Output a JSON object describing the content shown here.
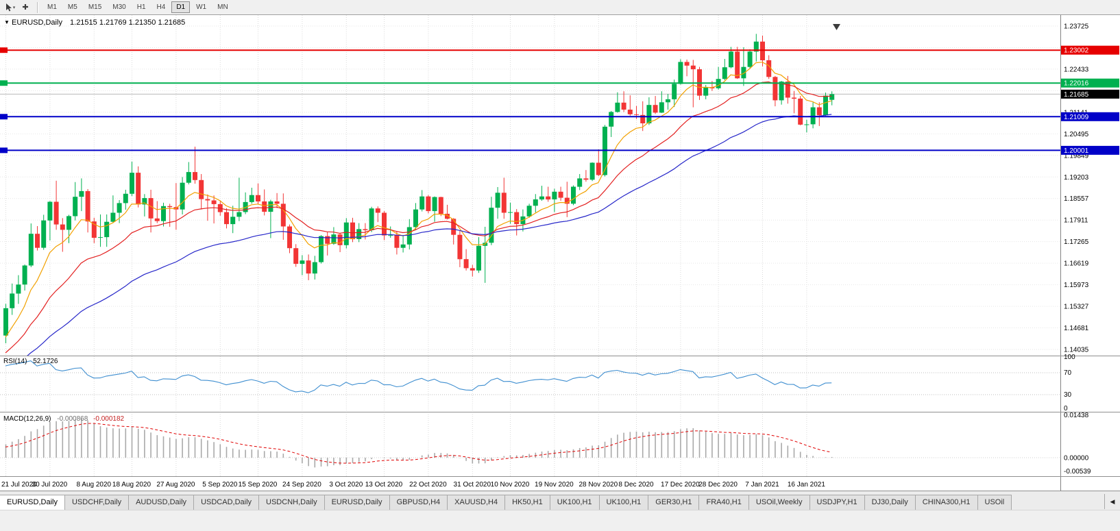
{
  "header": {
    "marker": "▼",
    "symbol_period": "EURUSD,Daily",
    "ohlc_text": "1.21515 1.21769 1.21350 1.21685"
  },
  "toolbar": {
    "timeframes": [
      {
        "label": "M1",
        "active": false
      },
      {
        "label": "M5",
        "active": false
      },
      {
        "label": "M15",
        "active": false
      },
      {
        "label": "M30",
        "active": false
      },
      {
        "label": "H1",
        "active": false
      },
      {
        "label": "H4",
        "active": false
      },
      {
        "label": "D1",
        "active": true
      },
      {
        "label": "W1",
        "active": false
      },
      {
        "label": "MN",
        "active": false
      }
    ]
  },
  "chart_data": {
    "type": "candlestick",
    "symbol": "EURUSD",
    "timeframe": "Daily",
    "current": {
      "open": 1.21515,
      "high": 1.21769,
      "low": 1.2135,
      "close": 1.21685
    },
    "colors": {
      "up": "#00b050",
      "down": "#f23535"
    },
    "price_axis": {
      "ticks": [
        "1.23725",
        "1.23079",
        "1.22433",
        "1.21787",
        "1.21141",
        "1.20495",
        "1.19849",
        "1.19203",
        "1.18557",
        "1.17911",
        "1.17265",
        "1.16619",
        "1.15973",
        "1.15327",
        "1.14681",
        "1.14035"
      ]
    },
    "hlines": [
      {
        "price": 1.23002,
        "label": "1.23002",
        "color": "#e60000"
      },
      {
        "price": 1.22016,
        "label": "1.22016",
        "color": "#00b050"
      },
      {
        "price": 1.21009,
        "label": "1.21009",
        "color": "#0000c8"
      },
      {
        "price": 1.20001,
        "label": "1.20001",
        "color": "#0000c8"
      }
    ],
    "current_price": {
      "value": 1.21685,
      "label": "1.21685",
      "color": "#000000"
    },
    "moving_averages": [
      {
        "period": 8,
        "color": "#f2a100"
      },
      {
        "period": 20,
        "color": "#e32020"
      },
      {
        "period": 45,
        "color": "#2626c9"
      }
    ],
    "x_labels": [
      {
        "i": 0,
        "label": "21 Jul 2020"
      },
      {
        "i": 7,
        "label": "30 Jul 2020"
      },
      {
        "i": 14,
        "label": "8 Aug 2020"
      },
      {
        "i": 20,
        "label": "18 Aug 2020"
      },
      {
        "i": 27,
        "label": "27 Aug 2020"
      },
      {
        "i": 34,
        "label": "5 Sep 2020"
      },
      {
        "i": 40,
        "label": "15 Sep 2020"
      },
      {
        "i": 47,
        "label": "24 Sep 2020"
      },
      {
        "i": 54,
        "label": "3 Oct 2020"
      },
      {
        "i": 60,
        "label": "13 Oct 2020"
      },
      {
        "i": 67,
        "label": "22 Oct 2020"
      },
      {
        "i": 74,
        "label": "31 Oct 2020"
      },
      {
        "i": 80,
        "label": "10 Nov 2020"
      },
      {
        "i": 87,
        "label": "19 Nov 2020"
      },
      {
        "i": 94,
        "label": "28 Nov 2020"
      },
      {
        "i": 100,
        "label": "8 Dec 2020"
      },
      {
        "i": 107,
        "label": "17 Dec 2020"
      },
      {
        "i": 113,
        "label": "28 Dec 2020"
      },
      {
        "i": 120,
        "label": "7 Jan 2021"
      },
      {
        "i": 127,
        "label": "16 Jan 2021"
      }
    ],
    "candles": [
      [
        1.1445,
        1.154,
        1.1422,
        1.1527
      ],
      [
        1.1527,
        1.1601,
        1.1507,
        1.1571
      ],
      [
        1.1571,
        1.1626,
        1.154,
        1.1598
      ],
      [
        1.1598,
        1.1658,
        1.158,
        1.1655
      ],
      [
        1.1655,
        1.1781,
        1.165,
        1.175
      ],
      [
        1.175,
        1.1773,
        1.17,
        1.1708
      ],
      [
        1.1708,
        1.1807,
        1.1702,
        1.179
      ],
      [
        1.179,
        1.1848,
        1.173,
        1.1846
      ],
      [
        1.1846,
        1.1909,
        1.1762,
        1.1778
      ],
      [
        1.1778,
        1.1797,
        1.1696,
        1.1762
      ],
      [
        1.1762,
        1.1807,
        1.1722,
        1.1803
      ],
      [
        1.1803,
        1.1905,
        1.179,
        1.1861
      ],
      [
        1.1861,
        1.1916,
        1.1818,
        1.1878
      ],
      [
        1.1878,
        1.1884,
        1.1754,
        1.1787
      ],
      [
        1.1787,
        1.1798,
        1.1722,
        1.1738
      ],
      [
        1.1738,
        1.1808,
        1.1711,
        1.174
      ],
      [
        1.174,
        1.1808,
        1.1711,
        1.1786
      ],
      [
        1.1786,
        1.1865,
        1.1782,
        1.1813
      ],
      [
        1.1813,
        1.1851,
        1.1782,
        1.1842
      ],
      [
        1.1842,
        1.1882,
        1.1822,
        1.187
      ],
      [
        1.187,
        1.1966,
        1.1863,
        1.1933
      ],
      [
        1.1933,
        1.1952,
        1.1829,
        1.1838
      ],
      [
        1.1838,
        1.1869,
        1.1802,
        1.1857
      ],
      [
        1.1857,
        1.1882,
        1.1754,
        1.1796
      ],
      [
        1.1796,
        1.1848,
        1.1782,
        1.1788
      ],
      [
        1.1788,
        1.1843,
        1.1772,
        1.1833
      ],
      [
        1.1833,
        1.184,
        1.1771,
        1.183
      ],
      [
        1.183,
        1.1902,
        1.1762,
        1.1823
      ],
      [
        1.1823,
        1.192,
        1.1808,
        1.1903
      ],
      [
        1.1903,
        1.1965,
        1.1898,
        1.1935
      ],
      [
        1.1935,
        1.2011,
        1.19,
        1.1911
      ],
      [
        1.1911,
        1.1929,
        1.1823,
        1.1854
      ],
      [
        1.1854,
        1.1868,
        1.1789,
        1.185
      ],
      [
        1.185,
        1.1865,
        1.1781,
        1.1839
      ],
      [
        1.1839,
        1.1849,
        1.1804,
        1.1815
      ],
      [
        1.1815,
        1.1827,
        1.1766,
        1.1779
      ],
      [
        1.1779,
        1.1834,
        1.1752,
        1.1801
      ],
      [
        1.1801,
        1.1918,
        1.1788,
        1.1815
      ],
      [
        1.1815,
        1.1874,
        1.1809,
        1.1845
      ],
      [
        1.1845,
        1.1888,
        1.184,
        1.1866
      ],
      [
        1.1866,
        1.1901,
        1.1838,
        1.1847
      ],
      [
        1.1847,
        1.1883,
        1.1805,
        1.1816
      ],
      [
        1.1816,
        1.1852,
        1.1737,
        1.1847
      ],
      [
        1.1847,
        1.1872,
        1.1827,
        1.184
      ],
      [
        1.184,
        1.1871,
        1.1732,
        1.1772
      ],
      [
        1.1772,
        1.1778,
        1.1692,
        1.1707
      ],
      [
        1.1707,
        1.1719,
        1.1651,
        1.166
      ],
      [
        1.166,
        1.1686,
        1.1626,
        1.167
      ],
      [
        1.167,
        1.1688,
        1.1611,
        1.1631
      ],
      [
        1.1631,
        1.1684,
        1.1613,
        1.1665
      ],
      [
        1.1665,
        1.1746,
        1.1661,
        1.1743
      ],
      [
        1.1743,
        1.1756,
        1.1685,
        1.172
      ],
      [
        1.172,
        1.177,
        1.1717,
        1.1748
      ],
      [
        1.1748,
        1.1752,
        1.1695,
        1.1716
      ],
      [
        1.1716,
        1.1797,
        1.1706,
        1.1784
      ],
      [
        1.1784,
        1.1798,
        1.1725,
        1.1734
      ],
      [
        1.1734,
        1.1782,
        1.1725,
        1.1764
      ],
      [
        1.1764,
        1.1782,
        1.1733,
        1.1761
      ],
      [
        1.1761,
        1.1831,
        1.1755,
        1.1826
      ],
      [
        1.1826,
        1.1832,
        1.1785,
        1.1813
      ],
      [
        1.1813,
        1.1818,
        1.1731,
        1.1745
      ],
      [
        1.1745,
        1.1772,
        1.1738,
        1.1746
      ],
      [
        1.1746,
        1.1758,
        1.1688,
        1.1708
      ],
      [
        1.1708,
        1.1746,
        1.1694,
        1.1718
      ],
      [
        1.1718,
        1.1794,
        1.1703,
        1.177
      ],
      [
        1.177,
        1.1842,
        1.1761,
        1.1823
      ],
      [
        1.1823,
        1.1881,
        1.1817,
        1.1862
      ],
      [
        1.1862,
        1.1866,
        1.1811,
        1.1818
      ],
      [
        1.1818,
        1.1862,
        1.1786,
        1.186
      ],
      [
        1.186,
        1.1861,
        1.1803,
        1.181
      ],
      [
        1.181,
        1.1837,
        1.1793,
        1.1795
      ],
      [
        1.1795,
        1.1797,
        1.1718,
        1.1747
      ],
      [
        1.1747,
        1.1759,
        1.165,
        1.1674
      ],
      [
        1.1674,
        1.1704,
        1.164,
        1.1647
      ],
      [
        1.1647,
        1.1657,
        1.1622,
        1.164
      ],
      [
        1.164,
        1.174,
        1.1633,
        1.1714
      ],
      [
        1.1714,
        1.1771,
        1.1603,
        1.1723
      ],
      [
        1.1723,
        1.1861,
        1.1716,
        1.1828
      ],
      [
        1.1828,
        1.189,
        1.1795,
        1.1873
      ],
      [
        1.1873,
        1.1918,
        1.1795,
        1.1813
      ],
      [
        1.1813,
        1.1843,
        1.178,
        1.1815
      ],
      [
        1.1815,
        1.1824,
        1.1745,
        1.1779
      ],
      [
        1.1779,
        1.1823,
        1.1757,
        1.1802
      ],
      [
        1.1802,
        1.184,
        1.1798,
        1.1834
      ],
      [
        1.1834,
        1.1869,
        1.1814,
        1.1853
      ],
      [
        1.1853,
        1.1894,
        1.1849,
        1.1862
      ],
      [
        1.1862,
        1.1891,
        1.1846,
        1.1853
      ],
      [
        1.1853,
        1.1885,
        1.1815,
        1.1876
      ],
      [
        1.1876,
        1.1891,
        1.1849,
        1.1858
      ],
      [
        1.1858,
        1.1906,
        1.18,
        1.184
      ],
      [
        1.184,
        1.1895,
        1.1836,
        1.1891
      ],
      [
        1.1891,
        1.1929,
        1.1881,
        1.1916
      ],
      [
        1.1916,
        1.1941,
        1.1906,
        1.1912
      ],
      [
        1.1912,
        1.1964,
        1.1908,
        1.1963
      ],
      [
        1.1963,
        1.2003,
        1.1923,
        1.1926
      ],
      [
        1.1926,
        1.2076,
        1.1922,
        1.2071
      ],
      [
        1.2071,
        1.2118,
        1.204,
        1.2115
      ],
      [
        1.2115,
        1.2174,
        1.2113,
        1.2143
      ],
      [
        1.2143,
        1.2177,
        1.2115,
        1.2122
      ],
      [
        1.2122,
        1.2165,
        1.2104,
        1.2108
      ],
      [
        1.2108,
        1.2133,
        1.2094,
        1.2106
      ],
      [
        1.2106,
        1.2147,
        1.2058,
        1.2081
      ],
      [
        1.2081,
        1.2159,
        1.2076,
        1.2136
      ],
      [
        1.2136,
        1.2163,
        1.2109,
        1.2113
      ],
      [
        1.2113,
        1.2177,
        1.2112,
        1.2144
      ],
      [
        1.2144,
        1.2169,
        1.2122,
        1.2153
      ],
      [
        1.2153,
        1.2212,
        1.213,
        1.2199
      ],
      [
        1.2199,
        1.2273,
        1.2197,
        1.2265
      ],
      [
        1.2265,
        1.2272,
        1.2222,
        1.2254
      ],
      [
        1.2254,
        1.2271,
        1.2129,
        1.2243
      ],
      [
        1.2243,
        1.225,
        1.2151,
        1.2164
      ],
      [
        1.2164,
        1.2196,
        1.2153,
        1.2189
      ],
      [
        1.2189,
        1.2208,
        1.2178,
        1.2186
      ],
      [
        1.2186,
        1.225,
        1.2182,
        1.2214
      ],
      [
        1.2214,
        1.2274,
        1.221,
        1.2249
      ],
      [
        1.2249,
        1.231,
        1.2246,
        1.2296
      ],
      [
        1.2296,
        1.231,
        1.2214,
        1.2216
      ],
      [
        1.2216,
        1.2309,
        1.2193,
        1.225
      ],
      [
        1.225,
        1.2303,
        1.2245,
        1.2296
      ],
      [
        1.2296,
        1.2349,
        1.2266,
        1.2326
      ],
      [
        1.2326,
        1.2344,
        1.2252,
        1.227
      ],
      [
        1.227,
        1.2285,
        1.2214,
        1.222
      ],
      [
        1.222,
        1.2223,
        1.2132,
        1.215
      ],
      [
        1.215,
        1.2208,
        1.2137,
        1.2206
      ],
      [
        1.2206,
        1.2223,
        1.214,
        1.2158
      ],
      [
        1.2158,
        1.2178,
        1.2111,
        1.2155
      ],
      [
        1.2155,
        1.2163,
        1.2075,
        1.2077
      ],
      [
        1.2077,
        1.2092,
        1.2054,
        1.2078
      ],
      [
        1.2078,
        1.2144,
        1.2066,
        1.2129
      ],
      [
        1.2129,
        1.2144,
        1.2073,
        1.2105
      ],
      [
        1.2105,
        1.2173,
        1.2103,
        1.2164
      ],
      [
        1.21515,
        1.21769,
        1.2135,
        1.21685
      ]
    ],
    "rsi": {
      "label": "RSI(14)",
      "value": "52.1726",
      "period": 14,
      "levels": [
        70,
        30
      ],
      "axis": [
        "100",
        "70",
        "30",
        "0"
      ],
      "color": "#3e8ed0"
    },
    "macd": {
      "label": "MACD(12,26,9)",
      "main": "-0.000868",
      "signal": "-0.000182",
      "fast": 12,
      "slow": 26,
      "signal_period": 9,
      "axis": [
        "0.01438",
        "0.00000",
        "-0.00539"
      ],
      "axis_max": 0.01438,
      "axis_min": -0.00539,
      "hist_color": "#a9a9a9",
      "signal_color": "#e00000"
    }
  },
  "tabs": {
    "scroll_left": "◀",
    "items": [
      {
        "label": "EURUSD,Daily",
        "active": true
      },
      {
        "label": "USDCHF,Daily"
      },
      {
        "label": "AUDUSD,Daily"
      },
      {
        "label": "USDCAD,Daily"
      },
      {
        "label": "USDCNH,Daily"
      },
      {
        "label": "EURUSD,Daily"
      },
      {
        "label": "GBPUSD,H4"
      },
      {
        "label": "XAUUSD,H4"
      },
      {
        "label": "HK50,H1"
      },
      {
        "label": "UK100,H1"
      },
      {
        "label": "UK100,H1"
      },
      {
        "label": "GER30,H1"
      },
      {
        "label": "FRA40,H1"
      },
      {
        "label": "USOil,Weekly"
      },
      {
        "label": "USDJPY,H1"
      },
      {
        "label": "DJ30,Daily"
      },
      {
        "label": "CHINA300,H1"
      },
      {
        "label": "USOil"
      }
    ]
  }
}
